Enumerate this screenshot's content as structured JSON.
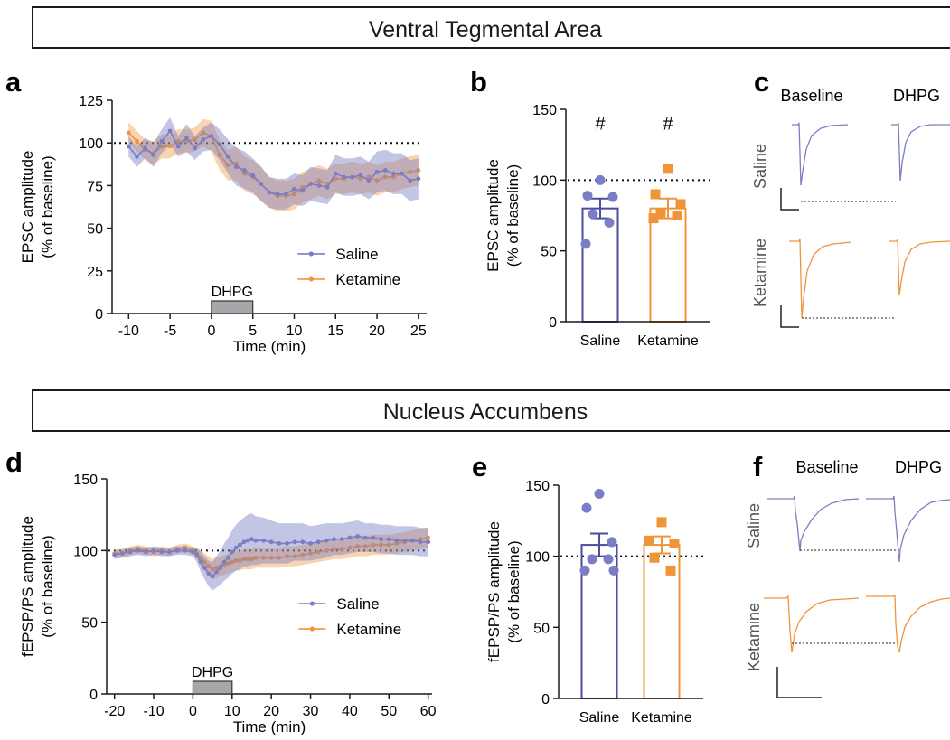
{
  "colors": {
    "saline": "#7b7ec4",
    "ketamine": "#f0943a",
    "saline_dark": "#4b4d9e",
    "axis": "#1a1a1a"
  },
  "sections": {
    "top_title": "Ventral Tegmental Area",
    "bottom_title": "Nucleus Accumbens"
  },
  "panel_letters": {
    "a": "a",
    "b": "b",
    "c": "c",
    "d": "d",
    "e": "e",
    "f": "f"
  },
  "traces": {
    "c": {
      "baseline": "Baseline",
      "dhpg": "DHPG",
      "row1": "Saline",
      "row2": "Ketamine"
    },
    "f": {
      "baseline": "Baseline",
      "dhpg": "DHPG",
      "row1": "Saline",
      "row2": "Ketamine"
    }
  },
  "chart_data": [
    {
      "id": "a",
      "type": "line",
      "xlabel": "Time (min)",
      "ylabel": "EPSC amplitude",
      "ylabel2": "(% of baseline)",
      "xlim": [
        -12,
        26
      ],
      "ylim": [
        0,
        125
      ],
      "xticks": [
        -10,
        -5,
        0,
        5,
        10,
        15,
        20,
        25
      ],
      "yticks": [
        0,
        25,
        50,
        75,
        100,
        125
      ],
      "reference_line": 100,
      "drug_bar": {
        "label": "DHPG",
        "start": 0,
        "end": 5
      },
      "legend": {
        "position": "right",
        "entries": [
          "Saline",
          "Ketamine"
        ]
      },
      "series": [
        {
          "name": "Saline",
          "x": [
            -10,
            -9,
            -8,
            -7,
            -6,
            -5,
            -4,
            -3,
            -2,
            -1,
            0,
            1,
            2,
            3,
            4,
            5,
            6,
            7,
            8,
            9,
            10,
            11,
            12,
            13,
            14,
            15,
            16,
            17,
            18,
            19,
            20,
            21,
            22,
            23,
            24,
            25
          ],
          "y": [
            98,
            92,
            97,
            93,
            101,
            107,
            98,
            103,
            97,
            102,
            104,
            99,
            92,
            86,
            84,
            81,
            76,
            71,
            70,
            70,
            73,
            72,
            76,
            75,
            74,
            82,
            80,
            80,
            81,
            78,
            83,
            84,
            82,
            82,
            78,
            79
          ],
          "err": [
            6,
            6,
            6,
            7,
            7,
            8,
            6,
            8,
            7,
            7,
            8,
            9,
            10,
            11,
            11,
            10,
            10,
            9,
            9,
            9,
            9,
            9,
            10,
            10,
            10,
            11,
            11,
            11,
            11,
            11,
            12,
            12,
            12,
            12,
            12,
            12
          ]
        },
        {
          "name": "Ketamine",
          "x": [
            -10,
            -9,
            -8,
            -7,
            -6,
            -5,
            -4,
            -3,
            -2,
            -1,
            0,
            1,
            2,
            3,
            4,
            5,
            6,
            7,
            8,
            9,
            10,
            11,
            12,
            13,
            14,
            15,
            16,
            17,
            18,
            19,
            20,
            21,
            22,
            23,
            24,
            25
          ],
          "y": [
            106,
            101,
            96,
            94,
            98,
            98,
            101,
            101,
            102,
            106,
            104,
            93,
            87,
            88,
            82,
            80,
            76,
            71,
            69,
            69,
            70,
            74,
            76,
            78,
            76,
            79,
            79,
            80,
            79,
            80,
            78,
            80,
            80,
            82,
            83,
            84
          ],
          "err": [
            6,
            6,
            6,
            7,
            7,
            7,
            7,
            7,
            7,
            8,
            9,
            9,
            9,
            10,
            10,
            10,
            10,
            9,
            9,
            9,
            9,
            9,
            9,
            9,
            9,
            9,
            9,
            9,
            9,
            9,
            9,
            9,
            9,
            9,
            9,
            9
          ]
        }
      ]
    },
    {
      "id": "b",
      "type": "bar",
      "ylabel": "EPSC amplitude",
      "ylabel2": "(% of baseline)",
      "ylim": [
        0,
        150
      ],
      "yticks": [
        0,
        50,
        100,
        150
      ],
      "reference_line": 100,
      "categories": [
        "Saline",
        "Ketamine"
      ],
      "values": [
        80,
        80
      ],
      "errors": [
        7,
        7
      ],
      "markers": [
        "#",
        "#"
      ],
      "points": [
        [
          100,
          89,
          88,
          76,
          70,
          55
        ],
        [
          108,
          90,
          83,
          76,
          75,
          73
        ]
      ]
    },
    {
      "id": "d",
      "type": "line",
      "xlabel": "Time (min)",
      "ylabel": "fEPSP/PS amplitude",
      "ylabel2": "(% of baseline)",
      "xlim": [
        -22,
        61
      ],
      "ylim": [
        0,
        150
      ],
      "xticks": [
        -20,
        -10,
        0,
        10,
        20,
        30,
        40,
        50,
        60
      ],
      "yticks": [
        0,
        50,
        100,
        150
      ],
      "reference_line": 100,
      "drug_bar": {
        "label": "DHPG",
        "start": 0,
        "end": 10
      },
      "legend": {
        "position": "right",
        "entries": [
          "Saline",
          "Ketamine"
        ]
      },
      "series": [
        {
          "name": "Saline",
          "x": [
            -20,
            -18,
            -16,
            -14,
            -12,
            -10,
            -8,
            -6,
            -4,
            -2,
            0,
            1,
            2,
            3,
            4,
            5,
            6,
            7,
            8,
            9,
            10,
            11,
            12,
            13,
            14,
            15,
            16,
            18,
            20,
            22,
            24,
            26,
            28,
            30,
            32,
            34,
            36,
            38,
            40,
            42,
            44,
            46,
            48,
            50,
            52,
            54,
            56,
            58,
            60
          ],
          "y": [
            97,
            98,
            99,
            100,
            99,
            100,
            99,
            99,
            100,
            100,
            99,
            97,
            92,
            88,
            84,
            82,
            85,
            88,
            92,
            95,
            99,
            102,
            104,
            106,
            107,
            108,
            107,
            107,
            106,
            105,
            105,
            106,
            106,
            105,
            106,
            107,
            108,
            108,
            109,
            110,
            109,
            109,
            108,
            108,
            107,
            107,
            107,
            106,
            106
          ],
          "err": [
            3,
            3,
            3,
            3,
            3,
            3,
            3,
            3,
            3,
            3,
            3,
            5,
            7,
            8,
            9,
            10,
            11,
            12,
            13,
            14,
            15,
            16,
            17,
            17,
            18,
            18,
            17,
            16,
            15,
            14,
            14,
            13,
            13,
            12,
            12,
            12,
            11,
            11,
            11,
            11,
            10,
            10,
            10,
            10,
            10,
            10,
            10,
            10,
            10
          ]
        },
        {
          "name": "Ketamine",
          "x": [
            -20,
            -18,
            -16,
            -14,
            -12,
            -10,
            -8,
            -6,
            -4,
            -2,
            0,
            1,
            2,
            3,
            4,
            5,
            6,
            7,
            8,
            9,
            10,
            11,
            12,
            13,
            14,
            15,
            16,
            18,
            20,
            22,
            24,
            26,
            28,
            30,
            32,
            34,
            36,
            38,
            40,
            42,
            44,
            46,
            48,
            50,
            52,
            54,
            56,
            58,
            60
          ],
          "y": [
            98,
            98,
            100,
            101,
            100,
            99,
            100,
            99,
            101,
            102,
            100,
            98,
            95,
            92,
            89,
            87,
            88,
            89,
            90,
            91,
            92,
            93,
            93,
            94,
            94,
            94,
            95,
            95,
            95,
            95,
            96,
            96,
            97,
            98,
            99,
            100,
            101,
            101,
            102,
            103,
            103,
            104,
            104,
            104,
            105,
            106,
            107,
            108,
            109
          ],
          "err": [
            3,
            3,
            3,
            3,
            3,
            3,
            3,
            3,
            3,
            3,
            3,
            4,
            5,
            6,
            7,
            7,
            7,
            7,
            7,
            7,
            7,
            7,
            7,
            7,
            7,
            7,
            7,
            7,
            7,
            7,
            7,
            7,
            7,
            7,
            7,
            7,
            7,
            7,
            7,
            7,
            7,
            7,
            7,
            7,
            7,
            7,
            7,
            7,
            7
          ]
        }
      ]
    },
    {
      "id": "e",
      "type": "bar",
      "ylabel": "fEPSP/PS amplitude",
      "ylabel2": "(% of baseline)",
      "ylim": [
        0,
        150
      ],
      "yticks": [
        0,
        50,
        100,
        150
      ],
      "reference_line": 100,
      "categories": [
        "Saline",
        "Ketamine"
      ],
      "values": [
        108,
        108
      ],
      "errors": [
        8,
        6
      ],
      "markers": [
        "",
        ""
      ],
      "points": [
        [
          144,
          134,
          110,
          98,
          98,
          90,
          90
        ],
        [
          124,
          111,
          109,
          99,
          90
        ]
      ]
    }
  ]
}
